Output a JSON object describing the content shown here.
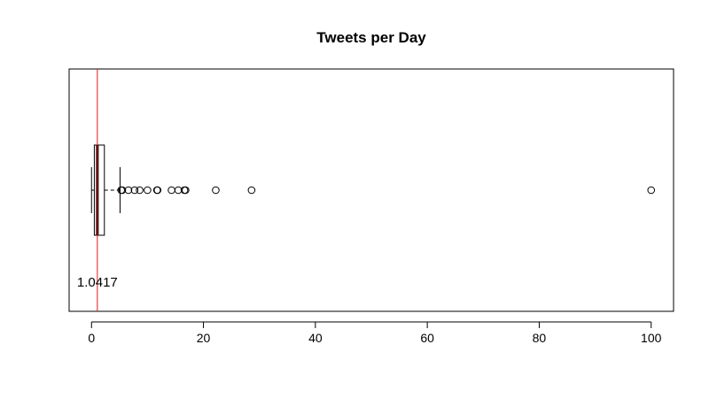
{
  "chart_data": {
    "type": "boxplot",
    "orientation": "horizontal",
    "title": "Tweets per Day",
    "xlabel": "",
    "ylabel": "",
    "xlim": [
      -4,
      104
    ],
    "x_ticks": [
      0,
      20,
      40,
      60,
      80,
      100
    ],
    "box": {
      "whisker_low": 0.0,
      "q1": 0.5,
      "median": 1.0417,
      "q3": 2.3,
      "whisker_high": 5.1
    },
    "outliers": [
      5.3,
      5.5,
      6.6,
      7.7,
      8.6,
      10,
      11.7,
      11.8,
      14.3,
      15.5,
      16.6,
      16.8,
      22.2,
      28.6,
      100
    ],
    "reference_line": {
      "x": 1.0417,
      "color": "#e41a1c"
    },
    "annotation": {
      "text": "1.0417",
      "x": 1.0417
    }
  }
}
